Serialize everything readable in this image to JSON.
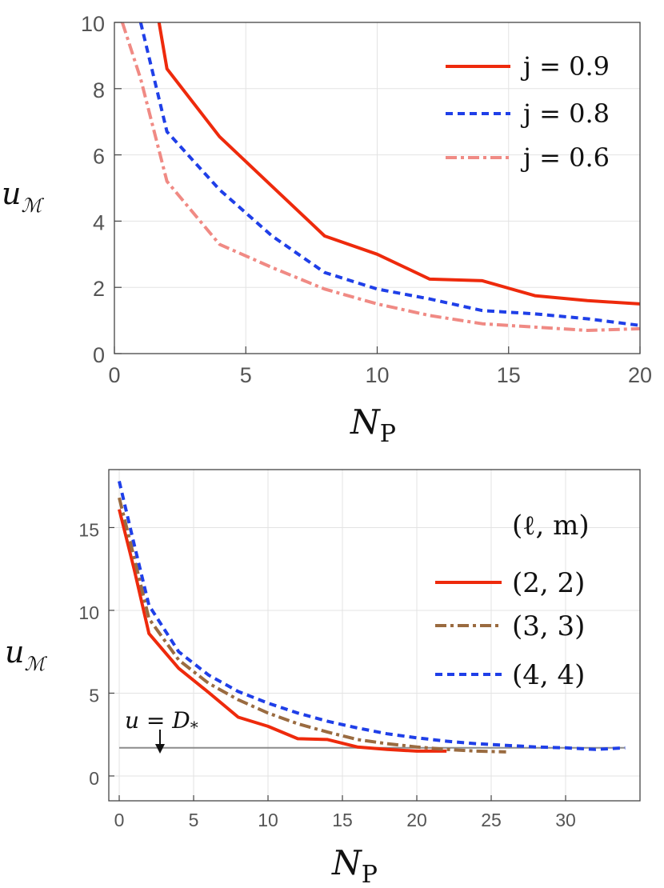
{
  "chart_data": [
    {
      "type": "line",
      "xlabel": "N",
      "xlabel_sub": "P",
      "ylabel": "u",
      "ylabel_sub": "ℳ",
      "xlim": [
        0,
        20
      ],
      "ylim": [
        0,
        10
      ],
      "xticks": [
        "0",
        "5",
        "10",
        "15",
        "20"
      ],
      "yticks": [
        "0",
        "2",
        "4",
        "6",
        "8",
        "10"
      ],
      "grid": true,
      "legend_position": "top-right",
      "legend_title": "",
      "series": [
        {
          "name": "j = 0.9",
          "style": "solid",
          "color": "#ee2a0c",
          "x": [
            1.7,
            2,
            4,
            6,
            8,
            10,
            12,
            14,
            16,
            18,
            20
          ],
          "y": [
            10,
            8.6,
            6.55,
            5.05,
            3.55,
            3.0,
            2.25,
            2.2,
            1.75,
            1.6,
            1.5
          ]
        },
        {
          "name": "j = 0.8",
          "style": "dashed",
          "color": "#1f3fe8",
          "x": [
            1.0,
            2,
            4,
            6,
            8,
            10,
            12,
            14,
            16,
            18,
            20
          ],
          "y": [
            10,
            6.7,
            4.95,
            3.55,
            2.45,
            1.95,
            1.65,
            1.3,
            1.2,
            1.05,
            0.85
          ]
        },
        {
          "name": "j = 0.6",
          "style": "dashdot",
          "color": "#f08a84",
          "x": [
            0.3,
            1,
            2,
            4,
            6,
            8,
            10,
            12,
            14,
            16,
            18,
            20
          ],
          "y": [
            10,
            8.3,
            5.2,
            3.3,
            2.6,
            1.95,
            1.5,
            1.15,
            0.9,
            0.8,
            0.7,
            0.75
          ]
        }
      ]
    },
    {
      "type": "line",
      "xlabel": "N",
      "xlabel_sub": "P",
      "ylabel": "u",
      "ylabel_sub": "ℳ",
      "xlim": [
        -0.7,
        35
      ],
      "ylim": [
        -1.5,
        18.5
      ],
      "xticks": [
        "0",
        "5",
        "10",
        "15",
        "20",
        "25",
        "30"
      ],
      "yticks": [
        "0",
        "5",
        "10",
        "15"
      ],
      "grid": true,
      "legend_position": "right",
      "legend_title": "(ℓ, m)",
      "annotation": {
        "text": "u = D",
        "sub": "*",
        "at_x": 2.7,
        "at_y": 1.7
      },
      "reference_line": {
        "y": 1.7,
        "color": "#8c8c8c"
      },
      "series": [
        {
          "name": "(2, 2)",
          "style": "solid",
          "color": "#ee2a0c",
          "x": [
            0,
            1,
            2,
            4,
            6,
            8,
            10,
            12,
            14,
            16,
            18,
            20,
            22
          ],
          "y": [
            16.1,
            12.5,
            8.6,
            6.5,
            5.05,
            3.55,
            3.0,
            2.25,
            2.2,
            1.75,
            1.6,
            1.5,
            1.5
          ]
        },
        {
          "name": "(3, 3)",
          "style": "dashdot",
          "color": "#9a6b40",
          "x": [
            0,
            1,
            2,
            4,
            6,
            8,
            10,
            12,
            14,
            16,
            18,
            20,
            22,
            24,
            26
          ],
          "y": [
            16.8,
            13.2,
            9.5,
            7.0,
            5.6,
            4.6,
            3.8,
            3.15,
            2.65,
            2.2,
            1.95,
            1.75,
            1.6,
            1.5,
            1.45
          ]
        },
        {
          "name": "(4, 4)",
          "style": "dashed",
          "color": "#1f3fe8",
          "x": [
            0,
            1,
            2,
            4,
            6,
            8,
            10,
            12,
            14,
            16,
            18,
            20,
            22,
            24,
            26,
            28,
            30,
            32,
            34
          ],
          "y": [
            17.8,
            14.0,
            10.3,
            7.5,
            6.1,
            5.1,
            4.4,
            3.8,
            3.3,
            2.9,
            2.55,
            2.3,
            2.1,
            1.95,
            1.85,
            1.75,
            1.7,
            1.6,
            1.7
          ]
        }
      ]
    }
  ]
}
